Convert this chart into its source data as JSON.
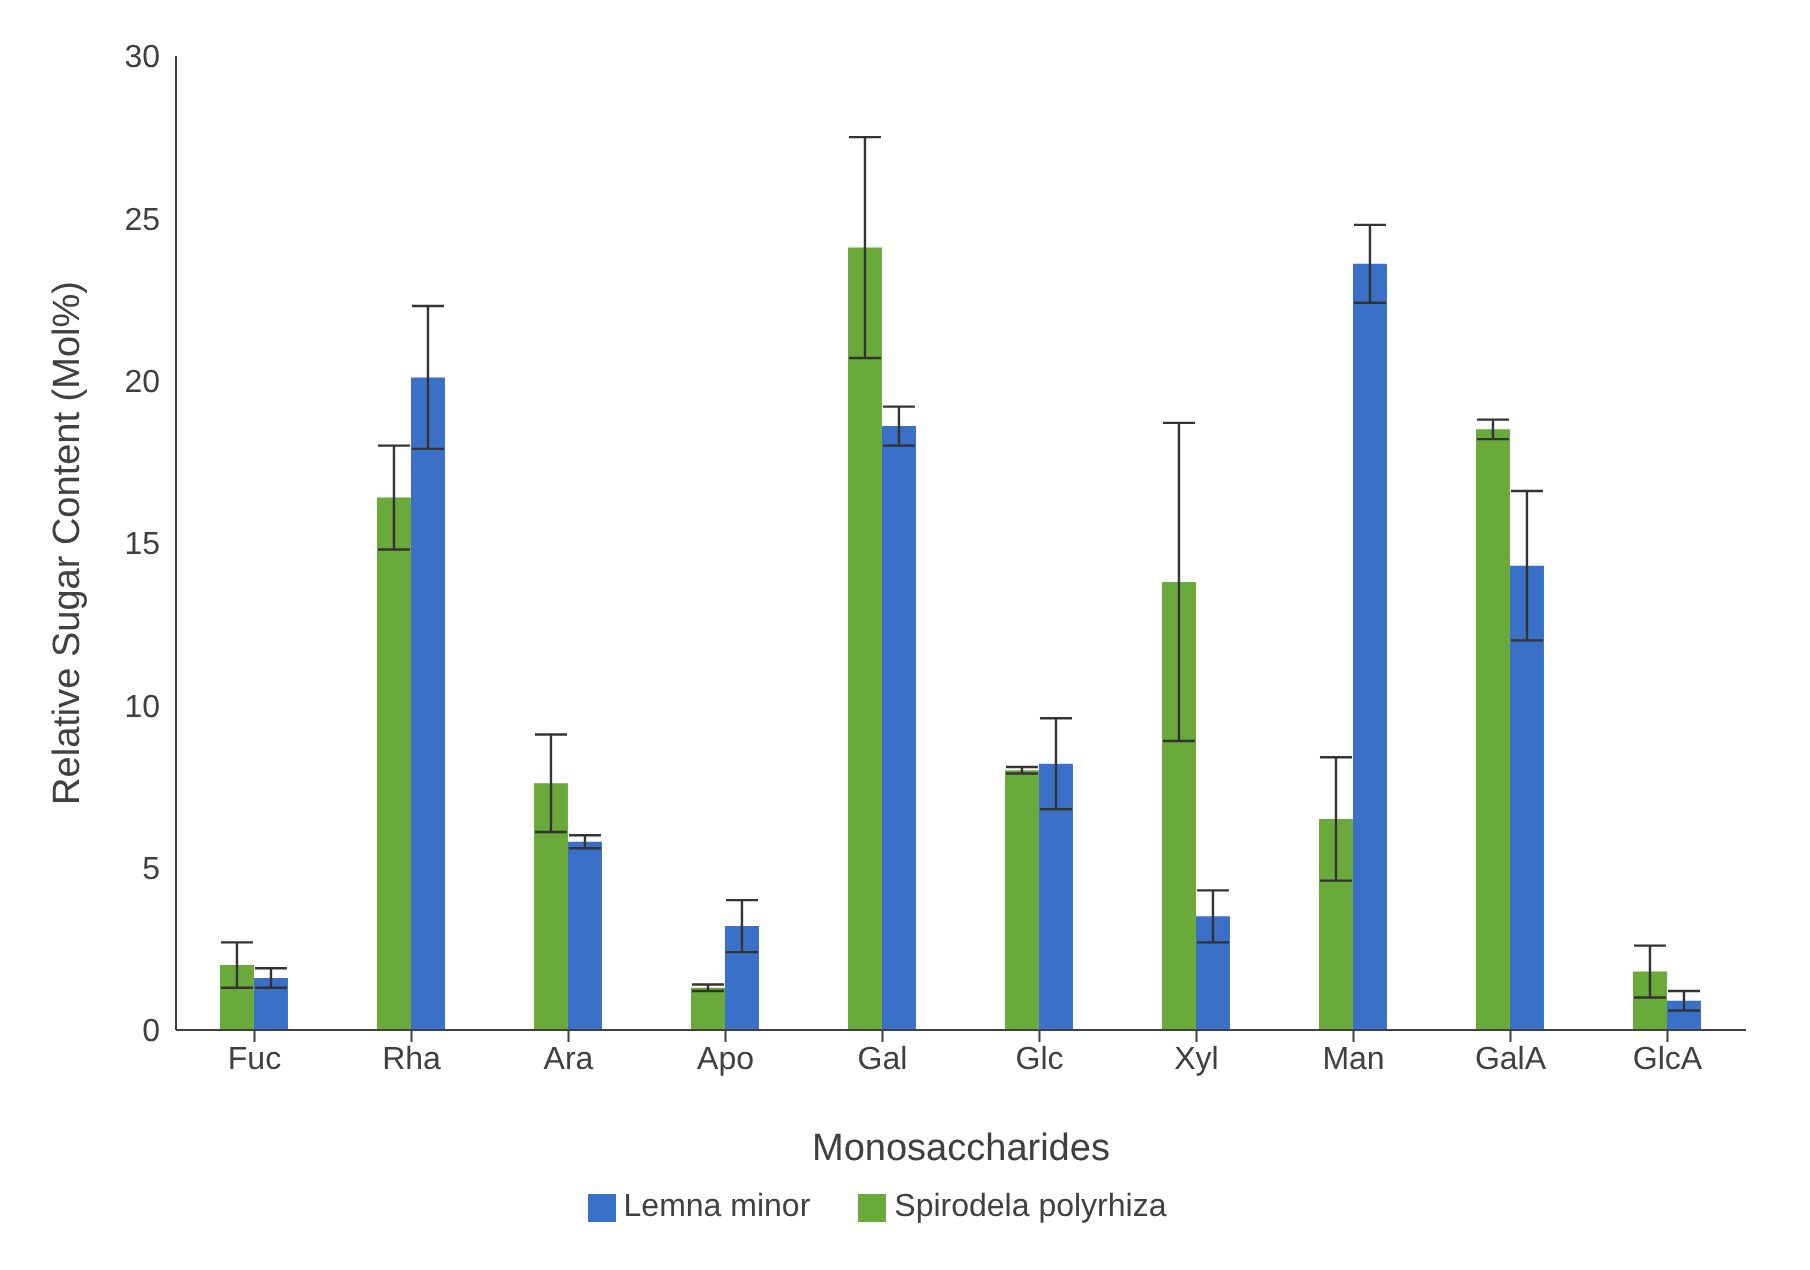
{
  "chart_data": {
    "type": "bar",
    "xlabel": "Monosaccharides",
    "ylabel": "Relative Sugar Content (Mol%)",
    "categories": [
      "Fuc",
      "Rha",
      "Ara",
      "Apo",
      "Gal",
      "Glc",
      "Xyl",
      "Man",
      "GalA",
      "GlcA"
    ],
    "series": [
      {
        "name": "Spirodela polyrhiza",
        "color": "#6aaa3a",
        "values": [
          2.0,
          16.4,
          7.6,
          1.3,
          24.1,
          8.0,
          13.8,
          6.5,
          18.5,
          1.8
        ],
        "errors": [
          0.7,
          1.6,
          1.5,
          0.1,
          3.4,
          0.1,
          4.9,
          1.9,
          0.3,
          0.8
        ]
      },
      {
        "name": "Lemna minor",
        "color": "#3a70c8",
        "values": [
          1.6,
          20.1,
          5.8,
          3.2,
          18.6,
          8.2,
          3.5,
          23.6,
          14.3,
          0.9
        ],
        "errors": [
          0.3,
          2.2,
          0.2,
          0.8,
          0.6,
          1.4,
          0.8,
          1.2,
          2.3,
          0.3
        ]
      }
    ],
    "ylim": [
      0,
      30
    ],
    "yticks": [
      0,
      5,
      10,
      15,
      20,
      25,
      30
    ],
    "grid": false,
    "legend": "bottom"
  }
}
